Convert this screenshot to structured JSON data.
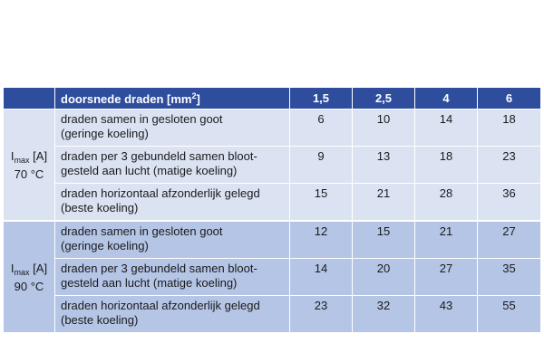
{
  "table": {
    "header": {
      "label_main": "doorsnede draden [mm",
      "label_sup": "2",
      "label_close": "]",
      "columns": [
        "1,5",
        "2,5",
        "4",
        "6"
      ]
    },
    "groups": [
      {
        "side_i": "I",
        "side_sub": "max",
        "side_unit": "[A]",
        "side_temp": "70 °C",
        "rows": [
          {
            "line1": "draden samen in gesloten goot",
            "line2": "(geringe koeling)",
            "values": [
              "6",
              "10",
              "14",
              "18"
            ]
          },
          {
            "line1": "draden per 3 gebundeld samen bloot-",
            "line2": "gesteld aan lucht (matige koeling)",
            "values": [
              "9",
              "13",
              "18",
              "23"
            ]
          },
          {
            "line1": "draden horizontaal afzonderlijk gelegd",
            "line2": "(beste koeling)",
            "values": [
              "15",
              "21",
              "28",
              "36"
            ]
          }
        ]
      },
      {
        "side_i": "I",
        "side_sub": "max",
        "side_unit": "[A]",
        "side_temp": "90 °C",
        "rows": [
          {
            "line1": "draden samen in gesloten goot",
            "line2": "(geringe koeling)",
            "values": [
              "12",
              "15",
              "21",
              "27"
            ]
          },
          {
            "line1": "draden per 3 gebundeld samen bloot-",
            "line2": "gesteld aan lucht (matige koeling)",
            "values": [
              "14",
              "20",
              "27",
              "35"
            ]
          },
          {
            "line1": "draden horizontaal afzonderlijk gelegd",
            "line2": "(beste koeling)",
            "values": [
              "23",
              "32",
              "43",
              "55"
            ]
          }
        ]
      }
    ]
  }
}
